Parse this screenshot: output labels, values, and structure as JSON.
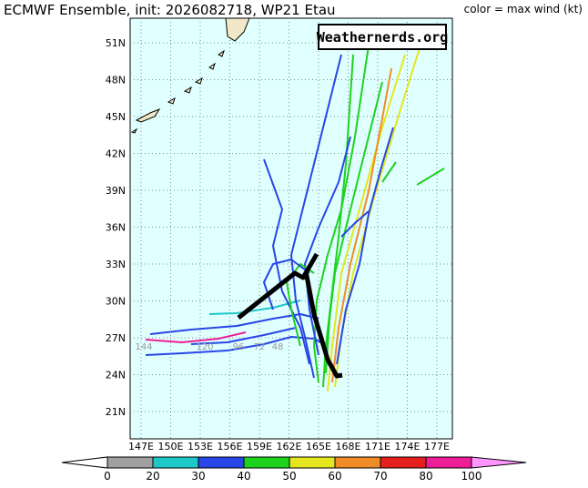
{
  "header": {
    "title": "ECMWF Ensemble, init: 2026082718, WP21 Etau",
    "legend_note": "color = max wind (kt)"
  },
  "map": {
    "watermark": "Weathernerds.org",
    "lat_labels": [
      "51N",
      "48N",
      "45N",
      "42N",
      "39N",
      "36N",
      "33N",
      "30N",
      "27N",
      "24N",
      "21N"
    ],
    "lon_labels": [
      "147E",
      "150E",
      "153E",
      "156E",
      "159E",
      "162E",
      "165E",
      "168E",
      "171E",
      "174E",
      "177E"
    ],
    "hour_labels": [
      "144",
      "120",
      "96",
      "72",
      "48"
    ]
  },
  "colorbar": {
    "labels": [
      "0",
      "20",
      "30",
      "40",
      "50",
      "60",
      "70",
      "80",
      "100"
    ],
    "colors": [
      "#a0a0a0",
      "#1ec8c8",
      "#2846e6",
      "#1ed21e",
      "#e6e61e",
      "#f08c28",
      "#e61e1e",
      "#ee1e96"
    ]
  }
}
